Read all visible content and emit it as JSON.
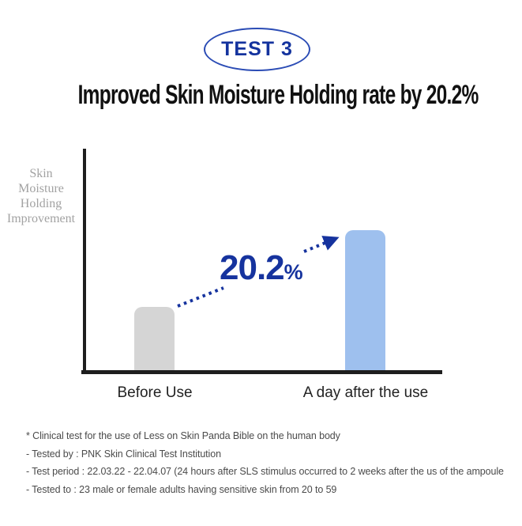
{
  "badge": {
    "label": "TEST 3"
  },
  "title": "Improved Skin Moisture Holding rate by 20.2%",
  "chart_data": {
    "type": "bar",
    "title": "Improved Skin Moisture Holding rate by 20.2%",
    "categories": [
      "Before Use",
      "A day after the use"
    ],
    "values": [
      45,
      100
    ],
    "value_scale": "relative bar heights; no numeric axis shown",
    "ylabel": "Skin Moisture Holding Improvement",
    "ylabel_lines": [
      "Skin",
      "Moisture",
      "Holding",
      "Improvement"
    ],
    "annotation": {
      "value": "20.2",
      "suffix": "%"
    },
    "bar_colors": [
      "#D5D5D5",
      "#9EC0EE"
    ],
    "axis_color": "#1E1E1E",
    "grid": false,
    "legend": false
  },
  "footnotes": [
    "* Clinical test for the use of Less on Skin Panda Bible on the human body",
    "- Tested by : PNK Skin Clinical Test Institution",
    "- Test period : 22.03.22 - 22.04.07 (24 hours after SLS stimulus occurred to 2 weeks after the us of the ampoule",
    "- Tested to : 23 male or female adults having sensitive skin from 20 to 59"
  ],
  "colors": {
    "accent_navy": "#16339E",
    "badge_border": "#2B4CB5",
    "bar_before": "#D5D5D5",
    "bar_after": "#9EC0EE",
    "axis_black": "#1E1E1E",
    "footnote_gray": "#4B4B4B",
    "ylabel_gray": "#A2A2A2"
  }
}
